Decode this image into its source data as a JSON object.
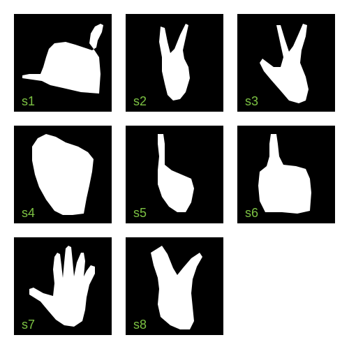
{
  "label_color": "#7cc243",
  "tile_background": "#000000",
  "hand_color": "#ffffff",
  "tiles": [
    {
      "label": "s1",
      "gesture": "hand-thumb-and-finger-up"
    },
    {
      "label": "s2",
      "gesture": "hand-v-sign"
    },
    {
      "label": "s3",
      "gesture": "hand-v-sign-wide"
    },
    {
      "label": "s4",
      "gesture": "hand-fist"
    },
    {
      "label": "s5",
      "gesture": "hand-index-up"
    },
    {
      "label": "s6",
      "gesture": "hand-index-up-fist"
    },
    {
      "label": "s7",
      "gesture": "hand-open-palm"
    },
    {
      "label": "s8",
      "gesture": "hand-v-sign-spread"
    }
  ]
}
